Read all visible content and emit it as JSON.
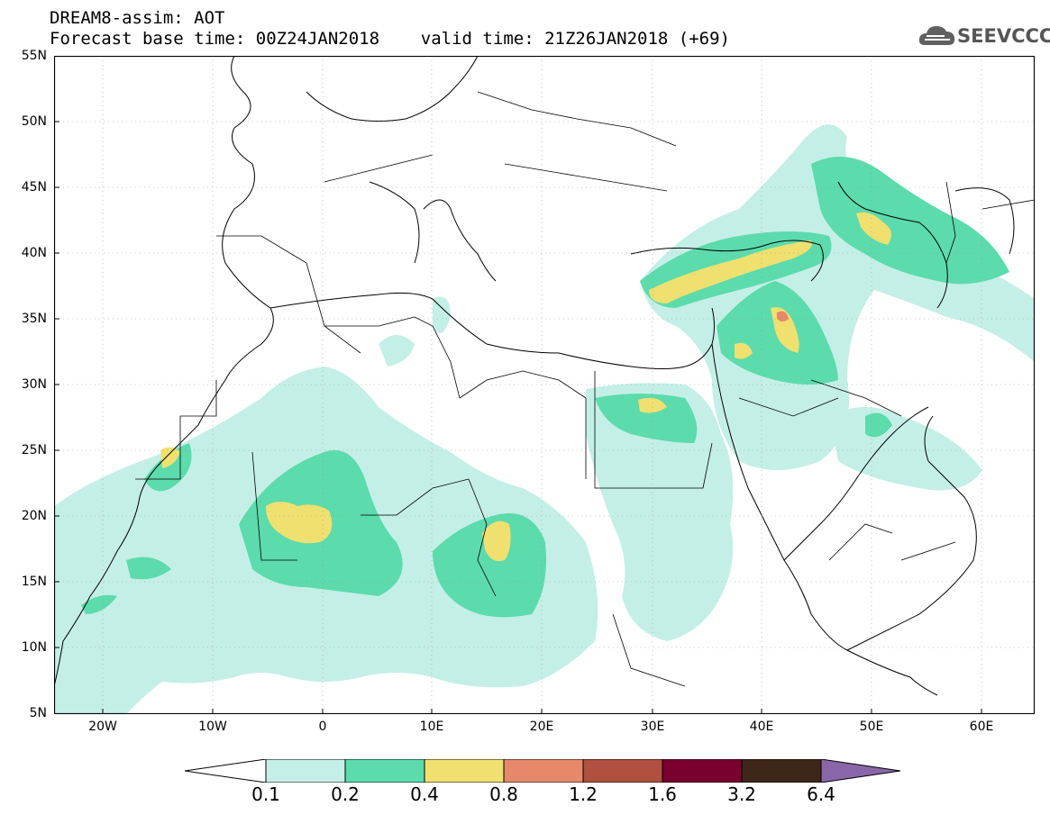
{
  "header": {
    "title_line1": "DREAM8-assim: AOT",
    "title_line2": "Forecast base time: 00Z24JAN2018    valid time: 21Z26JAN2018 (+69)",
    "brand": "SEEVCCC",
    "brand_logo_icon": "cloud-logo-icon"
  },
  "map": {
    "variable": "AOT",
    "projection": "lat-lon",
    "lon_range": [
      -25,
      65
    ],
    "lat_range": [
      5,
      55
    ],
    "lat_labels": [
      "55N",
      "50N",
      "45N",
      "40N",
      "35N",
      "30N",
      "25N",
      "20N",
      "15N",
      "10N",
      "5N"
    ],
    "lon_labels": [
      "20W",
      "10W",
      "0",
      "10E",
      "20E",
      "30E",
      "40E",
      "50E",
      "60E"
    ],
    "colors": {
      "c01": "#c4efe7",
      "c02": "#5cdbac",
      "c04": "#f0e070",
      "c08": "#e6896a",
      "c12": "#b0503e",
      "c16": "#7a0030",
      "c32": "#3e2718",
      "c64": "#8a66a8"
    }
  },
  "colorbar": {
    "labels": [
      "0.1",
      "0.2",
      "0.4",
      "0.8",
      "1.2",
      "1.6",
      "3.2",
      "6.4"
    ],
    "colors": [
      "#c4efe7",
      "#5cdbac",
      "#f0e070",
      "#e6896a",
      "#b0503e",
      "#7a0030",
      "#3e2718"
    ],
    "over_color": "#8a66a8",
    "under_color": "#ffffff"
  }
}
